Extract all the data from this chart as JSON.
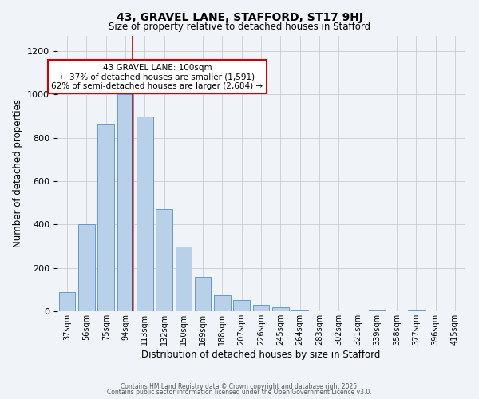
{
  "title1": "43, GRAVEL LANE, STAFFORD, ST17 9HJ",
  "title2": "Size of property relative to detached houses in Stafford",
  "xlabel": "Distribution of detached houses by size in Stafford",
  "ylabel": "Number of detached properties",
  "bin_labels": [
    "37sqm",
    "56sqm",
    "75sqm",
    "94sqm",
    "113sqm",
    "132sqm",
    "150sqm",
    "169sqm",
    "188sqm",
    "207sqm",
    "226sqm",
    "245sqm",
    "264sqm",
    "283sqm",
    "302sqm",
    "321sqm",
    "339sqm",
    "358sqm",
    "377sqm",
    "396sqm",
    "415sqm"
  ],
  "bar_values": [
    90,
    400,
    860,
    1000,
    900,
    470,
    300,
    160,
    75,
    50,
    30,
    20,
    5,
    0,
    0,
    0,
    5,
    0,
    5,
    0,
    0
  ],
  "bar_color": "#b8d0e8",
  "bar_edge_color": "#6699cc",
  "vline_x": 3.35,
  "vline_color": "#cc0000",
  "annotation_text": "43 GRAVEL LANE: 100sqm\n← 37% of detached houses are smaller (1,591)\n62% of semi-detached houses are larger (2,684) →",
  "annotation_box_color": "#ffffff",
  "annotation_box_edge_color": "#cc0000",
  "ylim": [
    0,
    1270
  ],
  "yticks": [
    0,
    200,
    400,
    600,
    800,
    1000,
    1200
  ],
  "footer1": "Contains HM Land Registry data © Crown copyright and database right 2025.",
  "footer2": "Contains public sector information licensed under the Open Government Licence v3.0.",
  "bg_color": "#f0f4f8"
}
